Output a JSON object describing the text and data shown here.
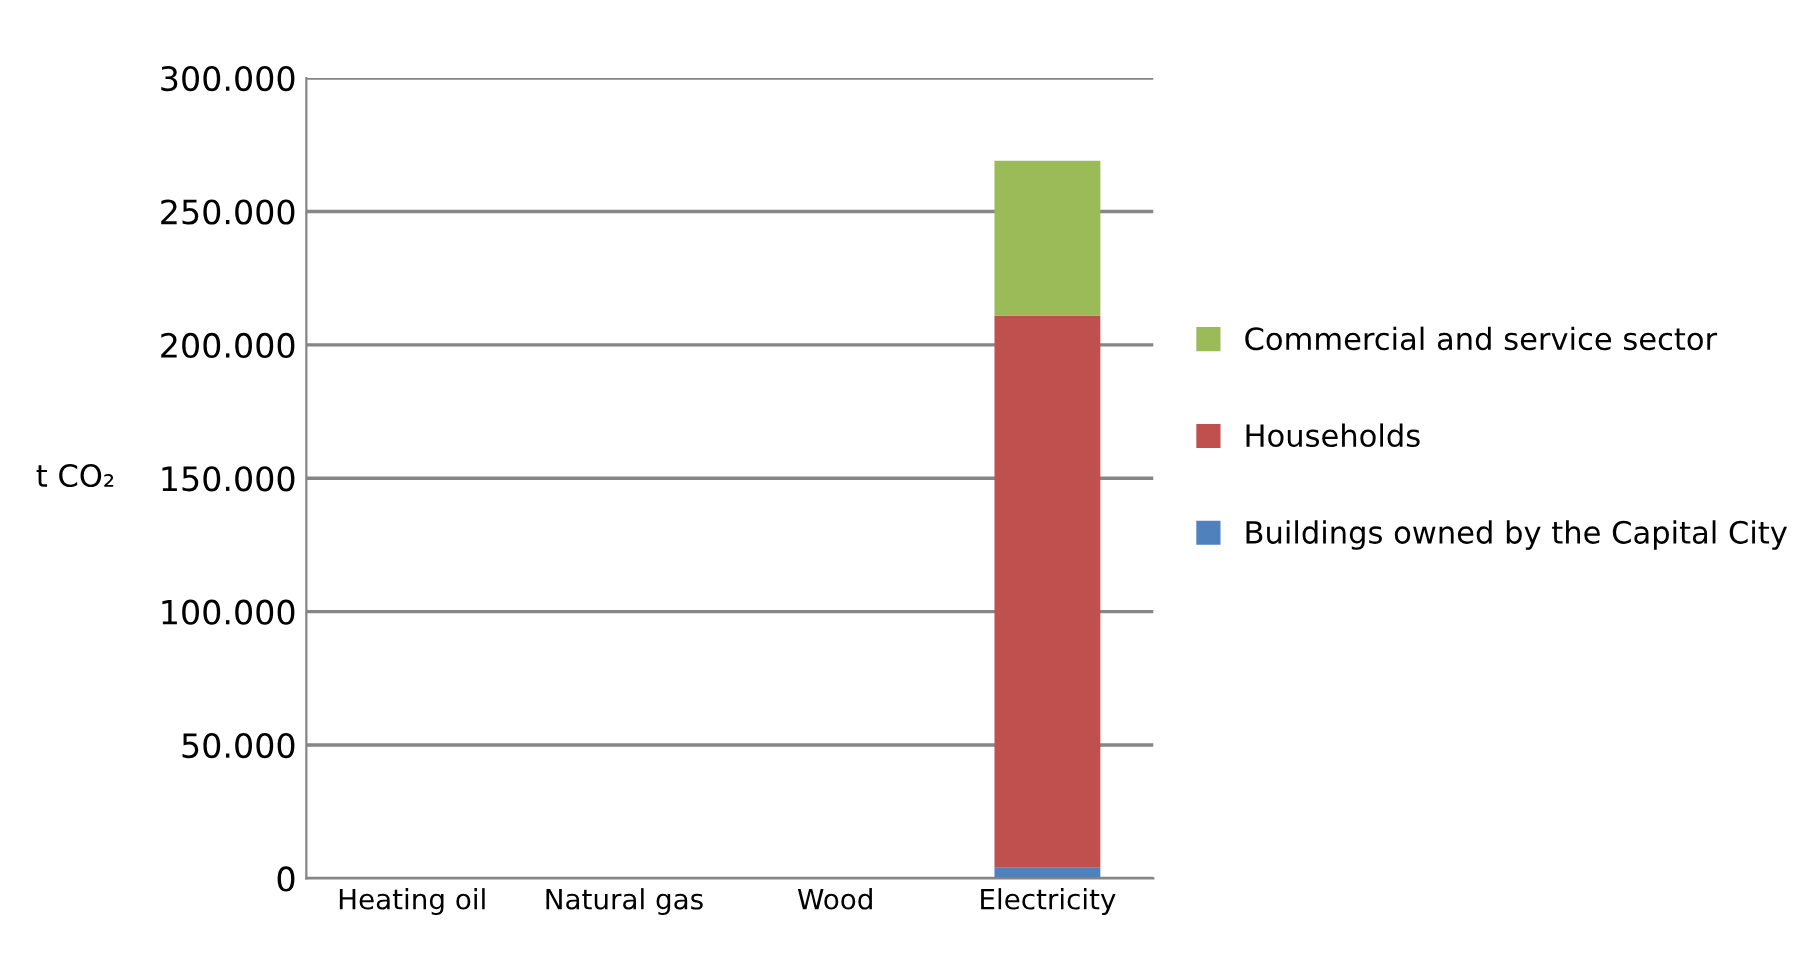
{
  "chart_data": {
    "type": "bar",
    "stacked": true,
    "ylabel": "t CO₂",
    "categories": [
      "Heating oil",
      "Natural gas",
      "Wood",
      "Electricity"
    ],
    "series": [
      {
        "name": "Buildings owned by the Capital City",
        "color": "#4f81bd",
        "values": [
          0,
          0,
          0,
          4000
        ]
      },
      {
        "name": "Households",
        "color": "#c0504d",
        "values": [
          0,
          0,
          0,
          207000
        ]
      },
      {
        "name": "Commercial and service sector",
        "color": "#9bbb59",
        "values": [
          0,
          0,
          0,
          58000
        ]
      }
    ],
    "ylim": [
      0,
      300000
    ],
    "yticks": [
      {
        "value": 0,
        "label": "0"
      },
      {
        "value": 50000,
        "label": "50.000"
      },
      {
        "value": 100000,
        "label": "100.000"
      },
      {
        "value": 150000,
        "label": "150.000"
      },
      {
        "value": 200000,
        "label": "200.000"
      },
      {
        "value": 250000,
        "label": "250.000"
      },
      {
        "value": 300000,
        "label": "300.000"
      }
    ],
    "grid": "y",
    "legend": "right"
  }
}
